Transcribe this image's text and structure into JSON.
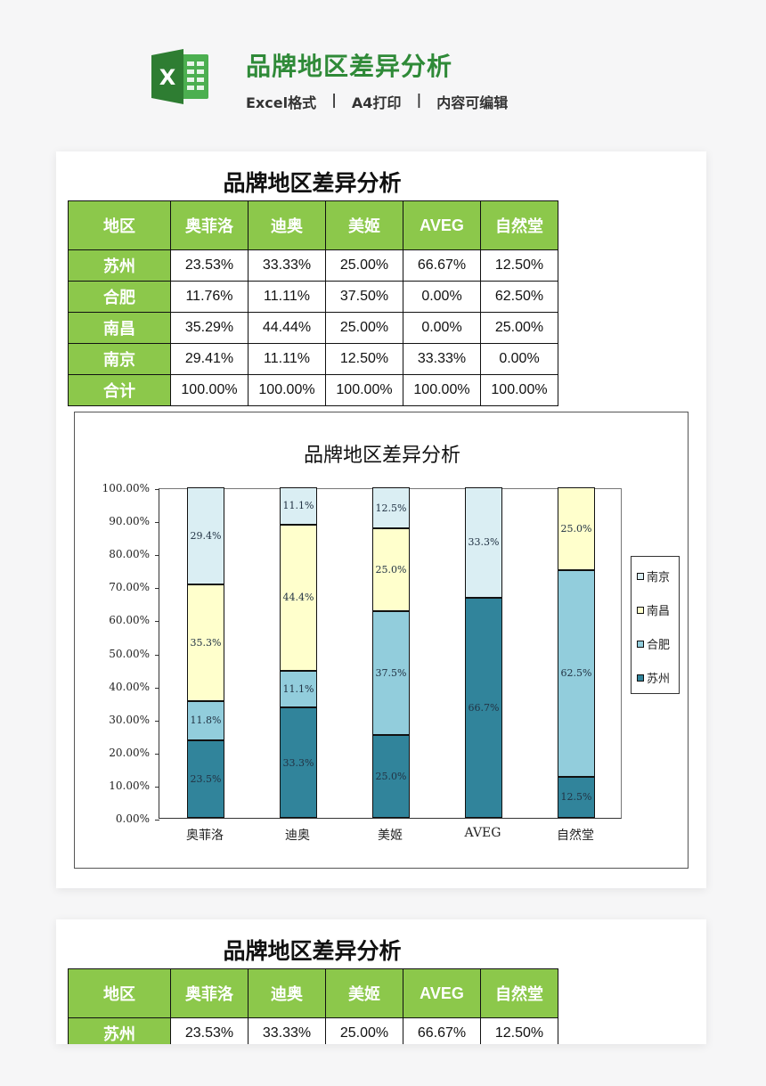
{
  "header": {
    "title": "品牌地区差异分析",
    "subtitle_items": [
      "Excel格式",
      "A4打印",
      "内容可编辑"
    ],
    "separator": "|",
    "icon": "excel-icon",
    "title_color": "#2f8a38"
  },
  "sheet": {
    "title": "品牌地区差异分析",
    "header_color": "#8cc84b",
    "columns": [
      "地区",
      "奥菲洛",
      "迪奥",
      "美姬",
      "AVEG",
      "自然堂"
    ],
    "rows": [
      {
        "region": "苏州",
        "values": [
          "23.53%",
          "33.33%",
          "25.00%",
          "66.67%",
          "12.50%"
        ]
      },
      {
        "region": "合肥",
        "values": [
          "11.76%",
          "11.11%",
          "37.50%",
          "0.00%",
          "62.50%"
        ]
      },
      {
        "region": "南昌",
        "values": [
          "35.29%",
          "44.44%",
          "25.00%",
          "0.00%",
          "25.00%"
        ]
      },
      {
        "region": "南京",
        "values": [
          "29.41%",
          "11.11%",
          "12.50%",
          "33.33%",
          "0.00%"
        ]
      },
      {
        "region": "合计",
        "values": [
          "100.00%",
          "100.00%",
          "100.00%",
          "100.00%",
          "100.00%"
        ]
      }
    ]
  },
  "sheet2": {
    "title": "品牌地区差异分析",
    "columns": [
      "地区",
      "奥菲洛",
      "迪奥",
      "美姬",
      "AVEG",
      "自然堂"
    ],
    "rows": [
      {
        "region": "苏州",
        "values": [
          "23.53%",
          "33.33%",
          "25.00%",
          "66.67%",
          "12.50%"
        ]
      }
    ]
  },
  "chart_data": {
    "type": "bar",
    "stacked": true,
    "percent": true,
    "title": "品牌地区差异分析",
    "xlabel": "",
    "ylabel": "",
    "ylim": [
      0,
      100
    ],
    "yticks": [
      "0.00%",
      "10.00%",
      "20.00%",
      "30.00%",
      "40.00%",
      "50.00%",
      "60.00%",
      "70.00%",
      "80.00%",
      "90.00%",
      "100.00%"
    ],
    "categories": [
      "奥菲洛",
      "迪奥",
      "美姬",
      "AVEG",
      "自然堂"
    ],
    "series": [
      {
        "name": "苏州",
        "color": "#31849b",
        "values": [
          23.5,
          33.3,
          25.0,
          66.7,
          12.5
        ]
      },
      {
        "name": "合肥",
        "color": "#92cddc",
        "values": [
          11.8,
          11.1,
          37.5,
          0.0,
          62.5
        ]
      },
      {
        "name": "南昌",
        "color": "#ffffcc",
        "values": [
          35.3,
          44.4,
          25.0,
          0.0,
          25.0
        ]
      },
      {
        "name": "南京",
        "color": "#daeef3",
        "values": [
          29.4,
          11.1,
          12.5,
          33.3,
          0.0
        ]
      }
    ],
    "legend": {
      "position": "right",
      "order": [
        "南京",
        "南昌",
        "合肥",
        "苏州"
      ]
    },
    "grid": false
  }
}
